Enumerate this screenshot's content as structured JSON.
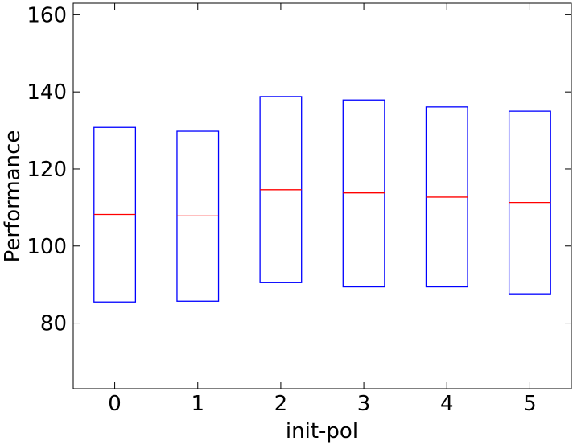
{
  "chart_data": {
    "type": "box",
    "xlabel": "init-pol",
    "ylabel": "Performance",
    "ylim": [
      63,
      163
    ],
    "yticks": [
      80,
      100,
      120,
      140,
      160
    ],
    "categories": [
      "0",
      "1",
      "2",
      "3",
      "4",
      "5"
    ],
    "boxes": [
      {
        "category": "0",
        "q1": 85.5,
        "median": 108.2,
        "q3": 130.8
      },
      {
        "category": "1",
        "q1": 85.7,
        "median": 107.8,
        "q3": 129.8
      },
      {
        "category": "2",
        "q1": 90.5,
        "median": 114.6,
        "q3": 138.8
      },
      {
        "category": "3",
        "q1": 89.4,
        "median": 113.8,
        "q3": 137.9
      },
      {
        "category": "4",
        "q1": 89.4,
        "median": 112.7,
        "q3": 136.1
      },
      {
        "category": "5",
        "q1": 87.6,
        "median": 111.3,
        "q3": 135.0
      }
    ],
    "colors": {
      "box": "#0000ff",
      "median": "#ff0000",
      "axis": "#000000"
    }
  }
}
